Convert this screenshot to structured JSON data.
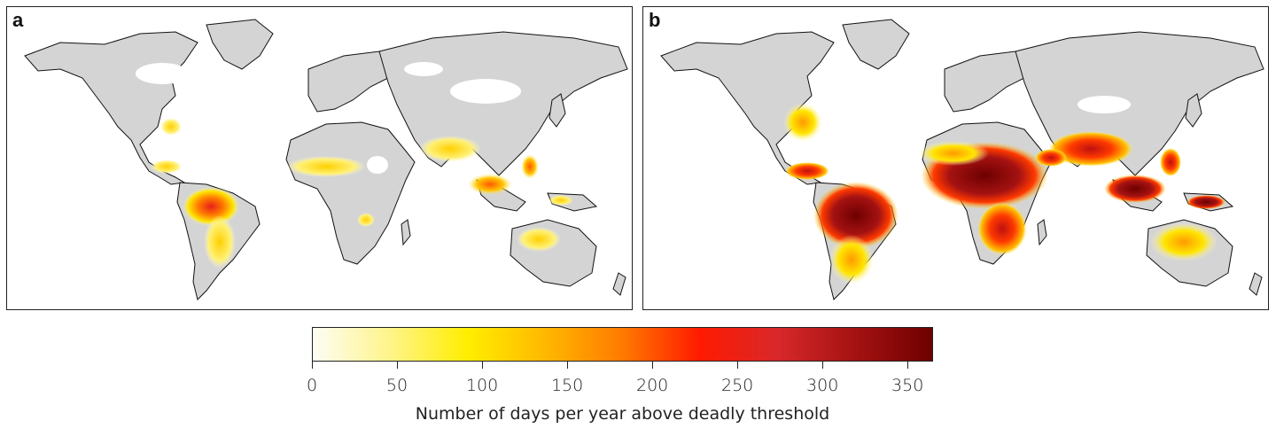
{
  "panels": [
    {
      "letter": "a"
    },
    {
      "letter": "b"
    }
  ],
  "colorbar": {
    "label": "Number of days per year above deadly threshold",
    "min": 0,
    "max": 365,
    "ticks": [
      "0",
      "50",
      "100",
      "150",
      "200",
      "250",
      "300",
      "350"
    ],
    "tick_values": [
      0,
      50,
      100,
      150,
      200,
      250,
      300,
      350
    ],
    "colors": [
      "#fdfdf5",
      "#fff48a",
      "#ffee00",
      "#ffb800",
      "#ff7a00",
      "#ff1a00",
      "#d8282a",
      "#a51212",
      "#6e0000"
    ]
  },
  "colors": {
    "land": "#d4d4d4",
    "coast": "#111111",
    "background": "#ffffff"
  }
}
